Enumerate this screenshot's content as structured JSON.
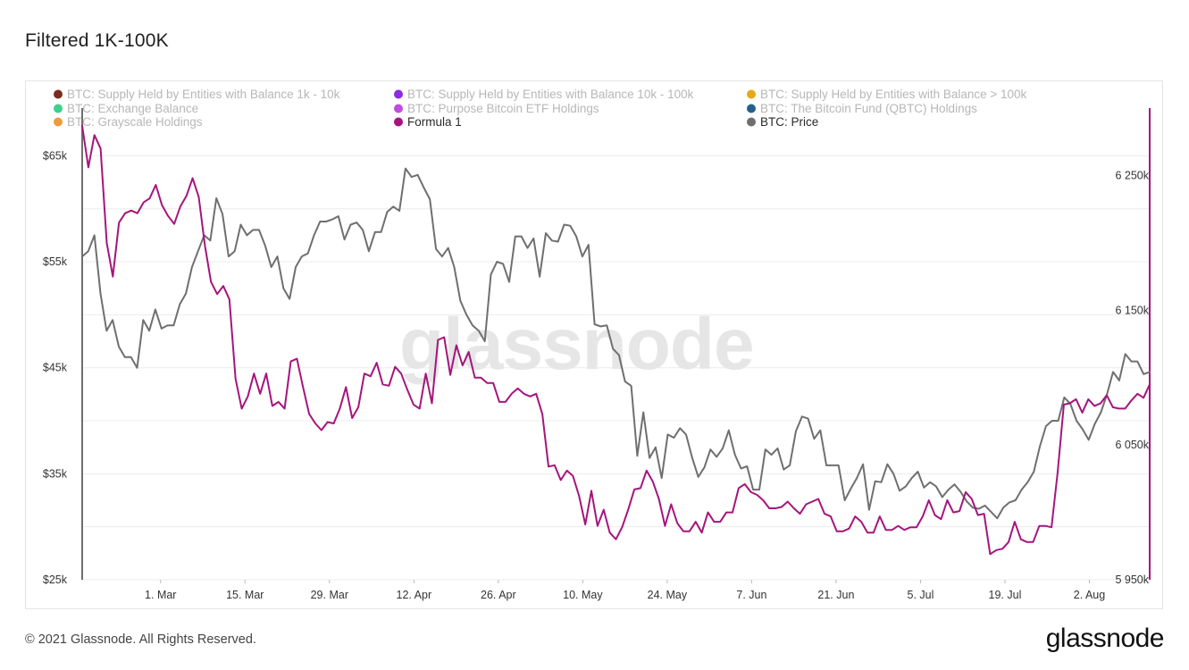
{
  "title": "Filtered 1K-100K",
  "footer": {
    "copyright": "© 2021 Glassnode. All Rights Reserved.",
    "logo": "glassnode"
  },
  "watermark": "glassnode",
  "colors": {
    "formula": "#a5157d",
    "price": "#6f6f6f",
    "grid": "#ececec"
  },
  "chart_data": {
    "type": "line",
    "legend": [
      {
        "name": "BTC: Supply Held by Entities with Balance 1k - 10k",
        "color": "#7b2d1d",
        "active": false
      },
      {
        "name": "BTC: Supply Held by Entities with Balance 10k - 100k",
        "color": "#8b2be2",
        "active": false
      },
      {
        "name": "BTC: Supply Held by Entities with Balance > 100k",
        "color": "#e6a817",
        "active": false
      },
      {
        "name": "BTC: Exchange Balance",
        "color": "#3fcf8e",
        "active": false
      },
      {
        "name": "BTC: Purpose Bitcoin ETF Holdings",
        "color": "#c04fd8",
        "active": false
      },
      {
        "name": "BTC: The Bitcoin Fund (QBTC) Holdings",
        "color": "#25608a",
        "active": false
      },
      {
        "name": "BTC: Grayscale Holdings",
        "color": "#ef9a3b",
        "active": false
      },
      {
        "name": "Formula 1",
        "color": "#a5157d",
        "active": true
      },
      {
        "name": "BTC: Price",
        "color": "#6f6f6f",
        "active": true
      }
    ],
    "x_labels": [
      "1. Mar",
      "15. Mar",
      "29. Mar",
      "12. Apr",
      "26. Apr",
      "10. May",
      "24. May",
      "7. Jun",
      "21. Jun",
      "5. Jul",
      "19. Jul",
      "2. Aug"
    ],
    "x_label_days": [
      13,
      27,
      41,
      55,
      69,
      83,
      97,
      111,
      125,
      139,
      153,
      167
    ],
    "x_range_days": [
      0,
      177
    ],
    "left_axis": {
      "ticks": [
        "$25k",
        "$35k",
        "$45k",
        "$55k",
        "$65k"
      ],
      "values": [
        25000,
        35000,
        45000,
        55000,
        65000
      ],
      "range": [
        25000,
        69500
      ]
    },
    "right_axis": {
      "ticks": [
        "5 950k",
        "6 050k",
        "6 150k",
        "6 250k"
      ],
      "values": [
        5950,
        6050,
        6150,
        6250
      ],
      "range": [
        5950,
        6300
      ]
    },
    "grid": true,
    "legend_position": "top",
    "series": [
      {
        "name": "BTC: Price",
        "axis": "left",
        "values": [
          55500,
          56000,
          57500,
          52000,
          48500,
          49500,
          47000,
          46000,
          46000,
          45000,
          49500,
          48500,
          50500,
          48700,
          49000,
          49000,
          51000,
          52000,
          54500,
          56000,
          57500,
          57000,
          61000,
          59500,
          55500,
          56000,
          58500,
          57500,
          58000,
          58000,
          56500,
          54500,
          55500,
          52500,
          51500,
          54500,
          55500,
          55800,
          57500,
          58800,
          58800,
          59000,
          59300,
          57100,
          58500,
          58700,
          58000,
          56000,
          57800,
          57800,
          59700,
          60200,
          59800,
          63800,
          63000,
          63200,
          62000,
          60900,
          56200,
          55500,
          56300,
          54500,
          51300,
          50000,
          49000,
          48500,
          47500,
          53800,
          55000,
          54800,
          53100,
          57400,
          57400,
          56300,
          57200,
          53600,
          57700,
          57000,
          56900,
          58500,
          58400,
          57400,
          55500,
          56600,
          49100,
          48900,
          49000,
          46800,
          46200,
          43700,
          43300,
          36700,
          40800,
          36500,
          37500,
          34600,
          38700,
          38400,
          39300,
          38700,
          36500,
          34700,
          35600,
          37300,
          36600,
          37400,
          39100,
          36800,
          35500,
          35700,
          33500,
          33500,
          37300,
          36800,
          37400,
          35400,
          35800,
          39000,
          40400,
          40200,
          38300,
          39100,
          35800,
          35800,
          35800,
          32500,
          33600,
          34600,
          35900,
          31600,
          34300,
          34200,
          35900,
          35000,
          33400,
          33800,
          34600,
          35200,
          33700,
          34200,
          33800,
          32800,
          33500,
          34000,
          33300,
          32400,
          31800,
          31700,
          32000,
          31400,
          30800,
          31800,
          32300,
          32500,
          33500,
          34200,
          35200,
          37600,
          39500,
          40000,
          40000,
          42200,
          41600,
          40000,
          39200,
          38200,
          39700,
          40800,
          42500,
          44600,
          43800,
          46300,
          45600,
          45600,
          44400,
          44600
        ]
      },
      {
        "name": "Formula 1",
        "axis": "right",
        "values": [
          6287,
          6256,
          6280,
          6270,
          6200,
          6175,
          6215,
          6222,
          6224,
          6222,
          6230,
          6233,
          6243,
          6228,
          6220,
          6214,
          6227,
          6235,
          6248,
          6234,
          6198,
          6171,
          6162,
          6168,
          6158,
          6099,
          6077,
          6086,
          6103,
          6088,
          6103,
          6079,
          6082,
          6077,
          6112,
          6114,
          6093,
          6073,
          6066,
          6061,
          6067,
          6066,
          6077,
          6093,
          6070,
          6078,
          6103,
          6101,
          6111,
          6095,
          6094,
          6108,
          6103,
          6091,
          6080,
          6077,
          6103,
          6081,
          6128,
          6130,
          6102,
          6124,
          6109,
          6119,
          6100,
          6100,
          6096,
          6096,
          6082,
          6082,
          6088,
          6092,
          6088,
          6086,
          6088,
          6073,
          6034,
          6035,
          6024,
          6031,
          6027,
          6012,
          5991,
          6016,
          5990,
          6002,
          5985,
          5980,
          5989,
          6002,
          6017,
          6018,
          6031,
          6023,
          6010,
          5990,
          6006,
          5992,
          5986,
          5986,
          5993,
          5985,
          6000,
          5993,
          5993,
          6000,
          6000,
          6018,
          6021,
          6015,
          6013,
          6009,
          6003,
          6003,
          6004,
          6008,
          6003,
          5999,
          6006,
          6008,
          6010,
          5999,
          5997,
          5986,
          5986,
          5988,
          5997,
          5993,
          5985,
          5985,
          5997,
          5987,
          5987,
          5990,
          5987,
          5989,
          5989,
          5997,
          6009,
          5998,
          5995,
          6009,
          6000,
          6001,
          6015,
          6010,
          5998,
          5999,
          5969,
          5972,
          5973,
          5978,
          5993,
          5980,
          5978,
          5978,
          5990,
          5990,
          5989,
          6030,
          6080,
          6081,
          6084,
          6074,
          6084,
          6079,
          6081,
          6087,
          6078,
          6077,
          6077,
          6083,
          6088,
          6085,
          6095
        ]
      }
    ]
  }
}
